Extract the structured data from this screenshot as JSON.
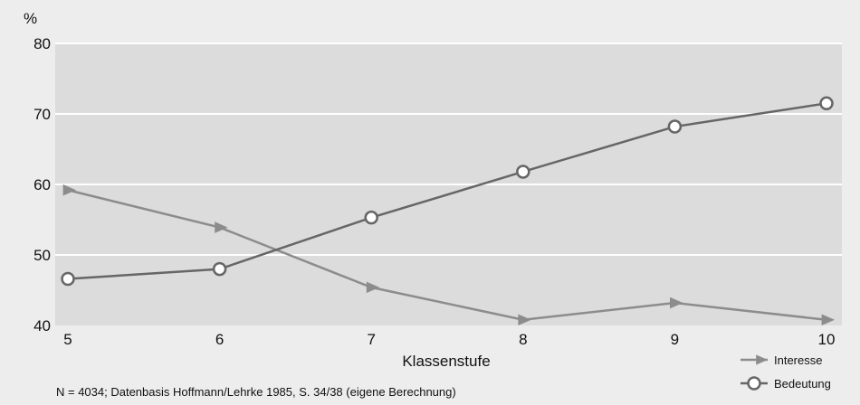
{
  "chart_data": {
    "type": "line",
    "y_unit": "%",
    "xlabel": "Klassenstufe",
    "x": [
      5,
      6,
      7,
      8,
      9,
      10
    ],
    "ylim": [
      40,
      80
    ],
    "yticks": [
      40,
      50,
      60,
      70,
      80
    ],
    "grid": true,
    "legend_position": "bottom-right",
    "series": [
      {
        "name": "Interesse",
        "marker": "triangle",
        "color": "#8c8c8c",
        "values": [
          59.2,
          53.9,
          45.4,
          40.8,
          43.2,
          40.8
        ]
      },
      {
        "name": "Bedeutung",
        "marker": "circle",
        "color": "#666666",
        "values": [
          46.6,
          48.0,
          55.3,
          61.8,
          68.2,
          71.5
        ]
      }
    ]
  },
  "footnote": "N = 4034; Datenbasis Hoffmann/Lehrke 1985, S. 34/38 (eigene Berechnung)",
  "colors": {
    "page_background": "#ededed",
    "plot_background": "#dcdcdc",
    "gridline": "#ffffff"
  }
}
